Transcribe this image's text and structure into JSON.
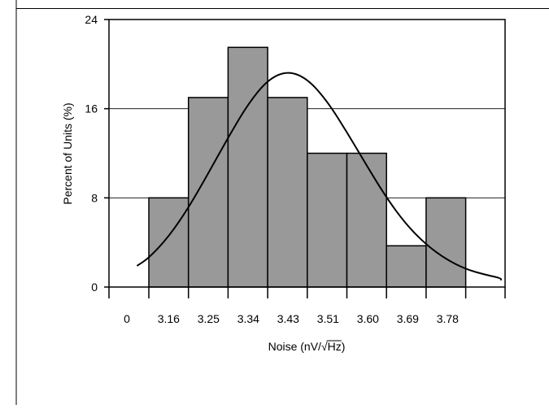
{
  "chart_data": {
    "type": "bar",
    "ylabel": "Percent of Units (%)",
    "xlabel": "Noise (nV/√Hz)",
    "xlabel_prefix": "Noise (nV/",
    "xlabel_root": "√",
    "xlabel_radicand": "Hz",
    "xlabel_suffix": ")",
    "ylim": [
      0,
      24
    ],
    "yticks": [
      0,
      8,
      16,
      24
    ],
    "ytick_labels": [
      "0",
      "8",
      "16",
      "24"
    ],
    "gridlines_y": [
      8,
      16
    ],
    "x_tick_labels": [
      "0",
      "3.16",
      "3.25",
      "3.34",
      "3.43",
      "3.51",
      "3.60",
      "3.69",
      "3.78"
    ],
    "categories": [
      "3.16",
      "3.25",
      "3.34",
      "3.43",
      "3.51",
      "3.60",
      "3.69",
      "3.78"
    ],
    "values": [
      8,
      17,
      21.5,
      17,
      12,
      12,
      3.7,
      8
    ],
    "bar_color": "#999999",
    "curve_color": "#000000",
    "curve": {
      "type": "normal-fit",
      "x": [
        -0.3,
        0,
        0.5,
        1,
        1.5,
        2,
        2.5,
        3,
        3.5,
        4,
        4.5,
        5,
        5.5,
        6,
        6.5,
        7,
        7.5,
        8,
        8.5,
        9,
        9.5,
        9.7
      ],
      "y": [
        1.9,
        2.6,
        4.5,
        7.1,
        10.2,
        13.4,
        16.4,
        18.6,
        19.4,
        18.7,
        16.7,
        13.9,
        10.9,
        8.0,
        5.6,
        3.8,
        2.5,
        1.6,
        1.1,
        0.8,
        0.6,
        0.6
      ]
    }
  }
}
